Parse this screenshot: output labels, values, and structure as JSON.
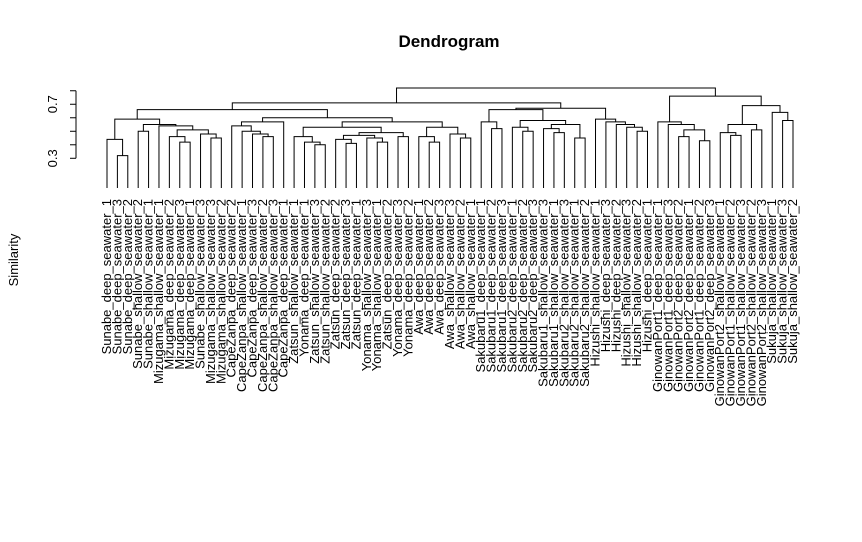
{
  "chart_data": {
    "type": "dendrogram",
    "title": "Dendrogram",
    "ylabel": "Similarity",
    "xlabel": "",
    "yticks": [
      {
        "value": 0.3,
        "label": "0.3"
      },
      {
        "value": 0.7,
        "label": "0.7"
      }
    ],
    "ylim": [
      0.08,
      0.85
    ],
    "axis_ticks": [
      0.3,
      0.4,
      0.5,
      0.6,
      0.7,
      0.8
    ],
    "leaf_bottom": 0.08,
    "grid": false,
    "leaves": [
      "Sunabe_deep_seawater_1",
      "Sunabe_deep_seawater_3",
      "Sunabe_deep_seawater_2",
      "Sunabe_shallow_seawater_2",
      "Sunabe_shallow_seawater_1",
      "Mizugama_shallow_seawater_1",
      "Mizugama_deep_seawater_2",
      "Mizugama_deep_seawater_3",
      "Mizugama_deep_seawater_1",
      "Sunabe_shallow_seawater_3",
      "Mizugama_shallow_seawater_3",
      "Mizugama_shallow_seawater_2",
      "CapeZanpa_deep_seawater_2",
      "CapeZanpa_shallow_seawater_1",
      "CapeZanpa_deep_seawater_3",
      "CapeZanpa_shallow_seawater_2",
      "CapeZanpa_shallow_seawater_3",
      "CapeZanpa_deep_seawater_1",
      "Zatsun_shallow_seawater_1",
      "Yonama_deep_seawater_1",
      "Zatsun_shallow_seawater_3",
      "Zatsun_shallow_seawater_2",
      "Zatsun_deep_seawater_2",
      "Zatsun_deep_seawater_3",
      "Zatsun_deep_seawater_1",
      "Yonama_shallow_seawater_3",
      "Yonama_shallow_seawater_1",
      "Zatsun_deep_seawater_2",
      "Yonama_deep_seawater_3",
      "Yonama_deep_seawater_2",
      "Awa_deep_seawater_1",
      "Awa_deep_seawater_2",
      "Awa_deep_seawater_3",
      "Awa_shallow_seawater_3",
      "Awa_shallow_seawater_2",
      "Awa_shallow_seawater_1",
      "Sakubaru1_deep_seawater_1",
      "Sakubaru1_deep_seawater_2",
      "Sakubaru1_deep_seawater_3",
      "Sakubaru2_deep_seawater_1",
      "Sakubaru2_deep_seawater_2",
      "Sakubaru2_deep_seawater_3",
      "Sakubaru1_shallow_seawater_3",
      "Sakubaru1_shallow_seawater_1",
      "Sakubaru2_shallow_seawater_3",
      "Sakubaru2_shallow_seawater_1",
      "Sakubaru2_shallow_seawater_2",
      "Hizushi_shallow_seawater_1",
      "Hizushi_deep_seawater_3",
      "Hizushi_deep_seawater_2",
      "Hizushi_shallow_seawater_3",
      "Hizushi_shallow_seawater_2",
      "Hizushi_deep_seawater_1",
      "GinowanPort1_deep_seawater_1",
      "GinowanPort1_deep_seawater_3",
      "GinowanPort2_deep_seawater_2",
      "GinowanPort2_deep_seawater_1",
      "GinowanPort1_deep_seawater_2",
      "GinowanPort2_deep_seawater_3",
      "GinowanPort2_shallow_seawater_1",
      "GinowanPort1_shallow_seawater_2",
      "GinowanPort1_shallow_seawater_3",
      "GinowanPort2_shallow_seawater_2",
      "GinowanPort2_shallow_seawater_3",
      "Sukuja_shallow_seawater_1",
      "Sukuja_shallow_seawater_3",
      "Sukuja_shallow_seawater_2"
    ],
    "merges": [
      {
        "l": 1,
        "r": 2,
        "h": 0.32
      },
      {
        "l": 0,
        "r": "m0",
        "h": 0.44
      },
      {
        "l": 3,
        "r": 4,
        "h": 0.5
      },
      {
        "l": 7,
        "r": 8,
        "h": 0.42
      },
      {
        "l": 6,
        "r": "m3",
        "h": 0.46
      },
      {
        "l": 10,
        "r": 11,
        "h": 0.45
      },
      {
        "l": 9,
        "r": "m5",
        "h": 0.48
      },
      {
        "l": "m4",
        "r": "m6",
        "h": 0.51
      },
      {
        "l": 5,
        "r": "m7",
        "h": 0.54
      },
      {
        "l": "m2",
        "r": "m8",
        "h": 0.55
      },
      {
        "l": "m1",
        "r": "m9",
        "h": 0.59
      },
      {
        "l": 15,
        "r": 16,
        "h": 0.46
      },
      {
        "l": 14,
        "r": "m11",
        "h": 0.48
      },
      {
        "l": 13,
        "r": "m12",
        "h": 0.5
      },
      {
        "l": 12,
        "r": "m13",
        "h": 0.54
      },
      {
        "l": "m14",
        "r": 17,
        "h": 0.57
      },
      {
        "l": 20,
        "r": 21,
        "h": 0.4
      },
      {
        "l": 19,
        "r": "m16",
        "h": 0.42
      },
      {
        "l": 18,
        "r": "m17",
        "h": 0.46
      },
      {
        "l": 23,
        "r": 24,
        "h": 0.41
      },
      {
        "l": 22,
        "r": "m19",
        "h": 0.44
      },
      {
        "l": 26,
        "r": 27,
        "h": 0.42
      },
      {
        "l": 25,
        "r": "m21",
        "h": 0.45
      },
      {
        "l": "m20",
        "r": "m22",
        "h": 0.47
      },
      {
        "l": 28,
        "r": 29,
        "h": 0.46
      },
      {
        "l": "m23",
        "r": "m24",
        "h": 0.49
      },
      {
        "l": "m18",
        "r": "m25",
        "h": 0.53
      },
      {
        "l": 31,
        "r": 32,
        "h": 0.42
      },
      {
        "l": 30,
        "r": "m27",
        "h": 0.46
      },
      {
        "l": 34,
        "r": 35,
        "h": 0.45
      },
      {
        "l": 33,
        "r": "m29",
        "h": 0.48
      },
      {
        "l": "m28",
        "r": "m30",
        "h": 0.53
      },
      {
        "l": "m26",
        "r": "m31",
        "h": 0.57
      },
      {
        "l": "m15",
        "r": "m32",
        "h": 0.6
      },
      {
        "l": "m10",
        "r": "m33",
        "h": 0.66
      },
      {
        "l": 37,
        "r": 38,
        "h": 0.52
      },
      {
        "l": 36,
        "r": "m35",
        "h": 0.57
      },
      {
        "l": 40,
        "r": 41,
        "h": 0.5
      },
      {
        "l": 39,
        "r": "m37",
        "h": 0.53
      },
      {
        "l": 43,
        "r": 44,
        "h": 0.49
      },
      {
        "l": 42,
        "r": "m39",
        "h": 0.52
      },
      {
        "l": 45,
        "r": 46,
        "h": 0.45
      },
      {
        "l": "m40",
        "r": "m41",
        "h": 0.55
      },
      {
        "l": "m38",
        "r": "m42",
        "h": 0.58
      },
      {
        "l": "m36",
        "r": "m43",
        "h": 0.66
      },
      {
        "l": 51,
        "r": 52,
        "h": 0.5
      },
      {
        "l": 50,
        "r": "m45",
        "h": 0.53
      },
      {
        "l": 49,
        "r": "m46",
        "h": 0.55
      },
      {
        "l": 48,
        "r": "m47",
        "h": 0.57
      },
      {
        "l": 47,
        "r": "m48",
        "h": 0.59
      },
      {
        "l": "m44",
        "r": "m49",
        "h": 0.67
      },
      {
        "l": "m34",
        "r": "m50",
        "h": 0.71
      },
      {
        "l": 55,
        "r": 56,
        "h": 0.46
      },
      {
        "l": 57,
        "r": 58,
        "h": 0.43
      },
      {
        "l": "m52",
        "r": "m53",
        "h": 0.51
      },
      {
        "l": 54,
        "r": "m54",
        "h": 0.55
      },
      {
        "l": 53,
        "r": "m55",
        "h": 0.57
      },
      {
        "l": 60,
        "r": 61,
        "h": 0.47
      },
      {
        "l": 59,
        "r": "m57",
        "h": 0.49
      },
      {
        "l": 62,
        "r": 63,
        "h": 0.51
      },
      {
        "l": "m58",
        "r": "m59",
        "h": 0.55
      },
      {
        "l": 65,
        "r": 66,
        "h": 0.58
      },
      {
        "l": 64,
        "r": "m61",
        "h": 0.64
      },
      {
        "l": "m60",
        "r": "m62",
        "h": 0.69
      },
      {
        "l": "m56",
        "r": "m63",
        "h": 0.76
      },
      {
        "l": "m51",
        "r": "m64",
        "h": 0.82
      }
    ]
  }
}
